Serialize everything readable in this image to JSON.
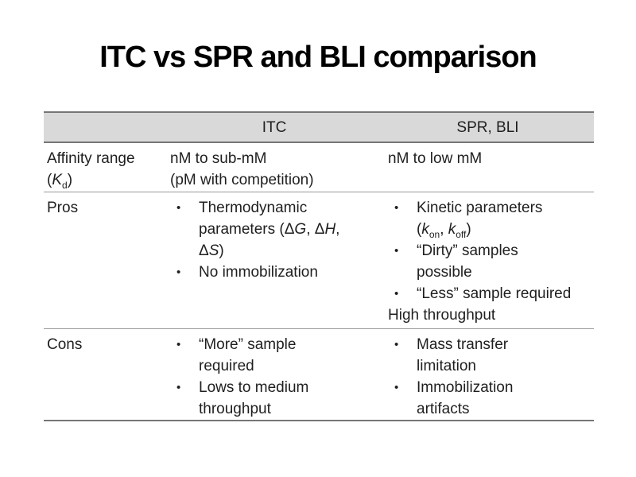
{
  "title": "ITC vs SPR and BLI comparison",
  "icons": {
    "bullet": "•"
  },
  "colors": {
    "header_bg": "#d9d9d9",
    "border_dark": "#767676",
    "border_light": "#9a9a9a",
    "text": "#1f1f1f",
    "title": "#000000",
    "slide_bg": "#ffffff"
  },
  "table": {
    "header": [
      "",
      "ITC",
      "SPR, BLI"
    ],
    "rows": [
      {
        "label": [
          {
            "t": "Affinity range"
          },
          {
            "br": true
          },
          {
            "t": "("
          },
          {
            "t": "K",
            "i": true
          },
          {
            "t": "d",
            "sub": true
          },
          {
            "t": ")"
          }
        ],
        "itc": [
          {
            "bullet": false,
            "runs": [
              {
                "t": "nM to sub-mM"
              },
              {
                "br": true
              },
              {
                "t": "(pM with competition)"
              }
            ]
          }
        ],
        "spr_bli": [
          {
            "bullet": false,
            "runs": [
              {
                "t": "nM to low mM"
              }
            ]
          }
        ]
      },
      {
        "label": [
          {
            "t": "Pros"
          }
        ],
        "itc": [
          {
            "bullet": true,
            "runs": [
              {
                "t": "Thermodynamic"
              },
              {
                "br": true
              },
              {
                "t": "parameters (Δ"
              },
              {
                "t": "G",
                "i": true
              },
              {
                "t": ", Δ"
              },
              {
                "t": "H",
                "i": true
              },
              {
                "t": ","
              },
              {
                "br": true
              },
              {
                "t": "Δ"
              },
              {
                "t": "S",
                "i": true
              },
              {
                "t": ")"
              }
            ]
          },
          {
            "bullet": true,
            "runs": [
              {
                "t": "No immobilization"
              }
            ]
          }
        ],
        "spr_bli": [
          {
            "bullet": true,
            "runs": [
              {
                "t": "Kinetic parameters"
              },
              {
                "br": true
              },
              {
                "t": "("
              },
              {
                "t": "k",
                "i": true
              },
              {
                "t": "on",
                "sub": true
              },
              {
                "t": ", "
              },
              {
                "t": "k",
                "i": true
              },
              {
                "t": "off",
                "sub": true
              },
              {
                "t": ")"
              }
            ]
          },
          {
            "bullet": true,
            "runs": [
              {
                "t": "“Dirty” samples"
              },
              {
                "br": true
              },
              {
                "t": "possible"
              }
            ]
          },
          {
            "bullet": true,
            "runs": [
              {
                "t": "“Less” sample required"
              }
            ]
          },
          {
            "bullet": false,
            "runs": [
              {
                "t": "High throughput"
              }
            ]
          }
        ]
      },
      {
        "label": [
          {
            "t": "Cons"
          }
        ],
        "itc": [
          {
            "bullet": true,
            "runs": [
              {
                "t": "“More” sample"
              },
              {
                "br": true
              },
              {
                "t": "required"
              }
            ]
          },
          {
            "bullet": true,
            "runs": [
              {
                "t": "Lows to medium"
              },
              {
                "br": true
              },
              {
                "t": "throughput"
              }
            ]
          }
        ],
        "spr_bli": [
          {
            "bullet": true,
            "runs": [
              {
                "t": "Mass transfer"
              },
              {
                "br": true
              },
              {
                "t": "limitation"
              }
            ]
          },
          {
            "bullet": true,
            "runs": [
              {
                "t": "Immobilization"
              },
              {
                "br": true
              },
              {
                "t": "artifacts"
              }
            ]
          }
        ]
      }
    ]
  }
}
